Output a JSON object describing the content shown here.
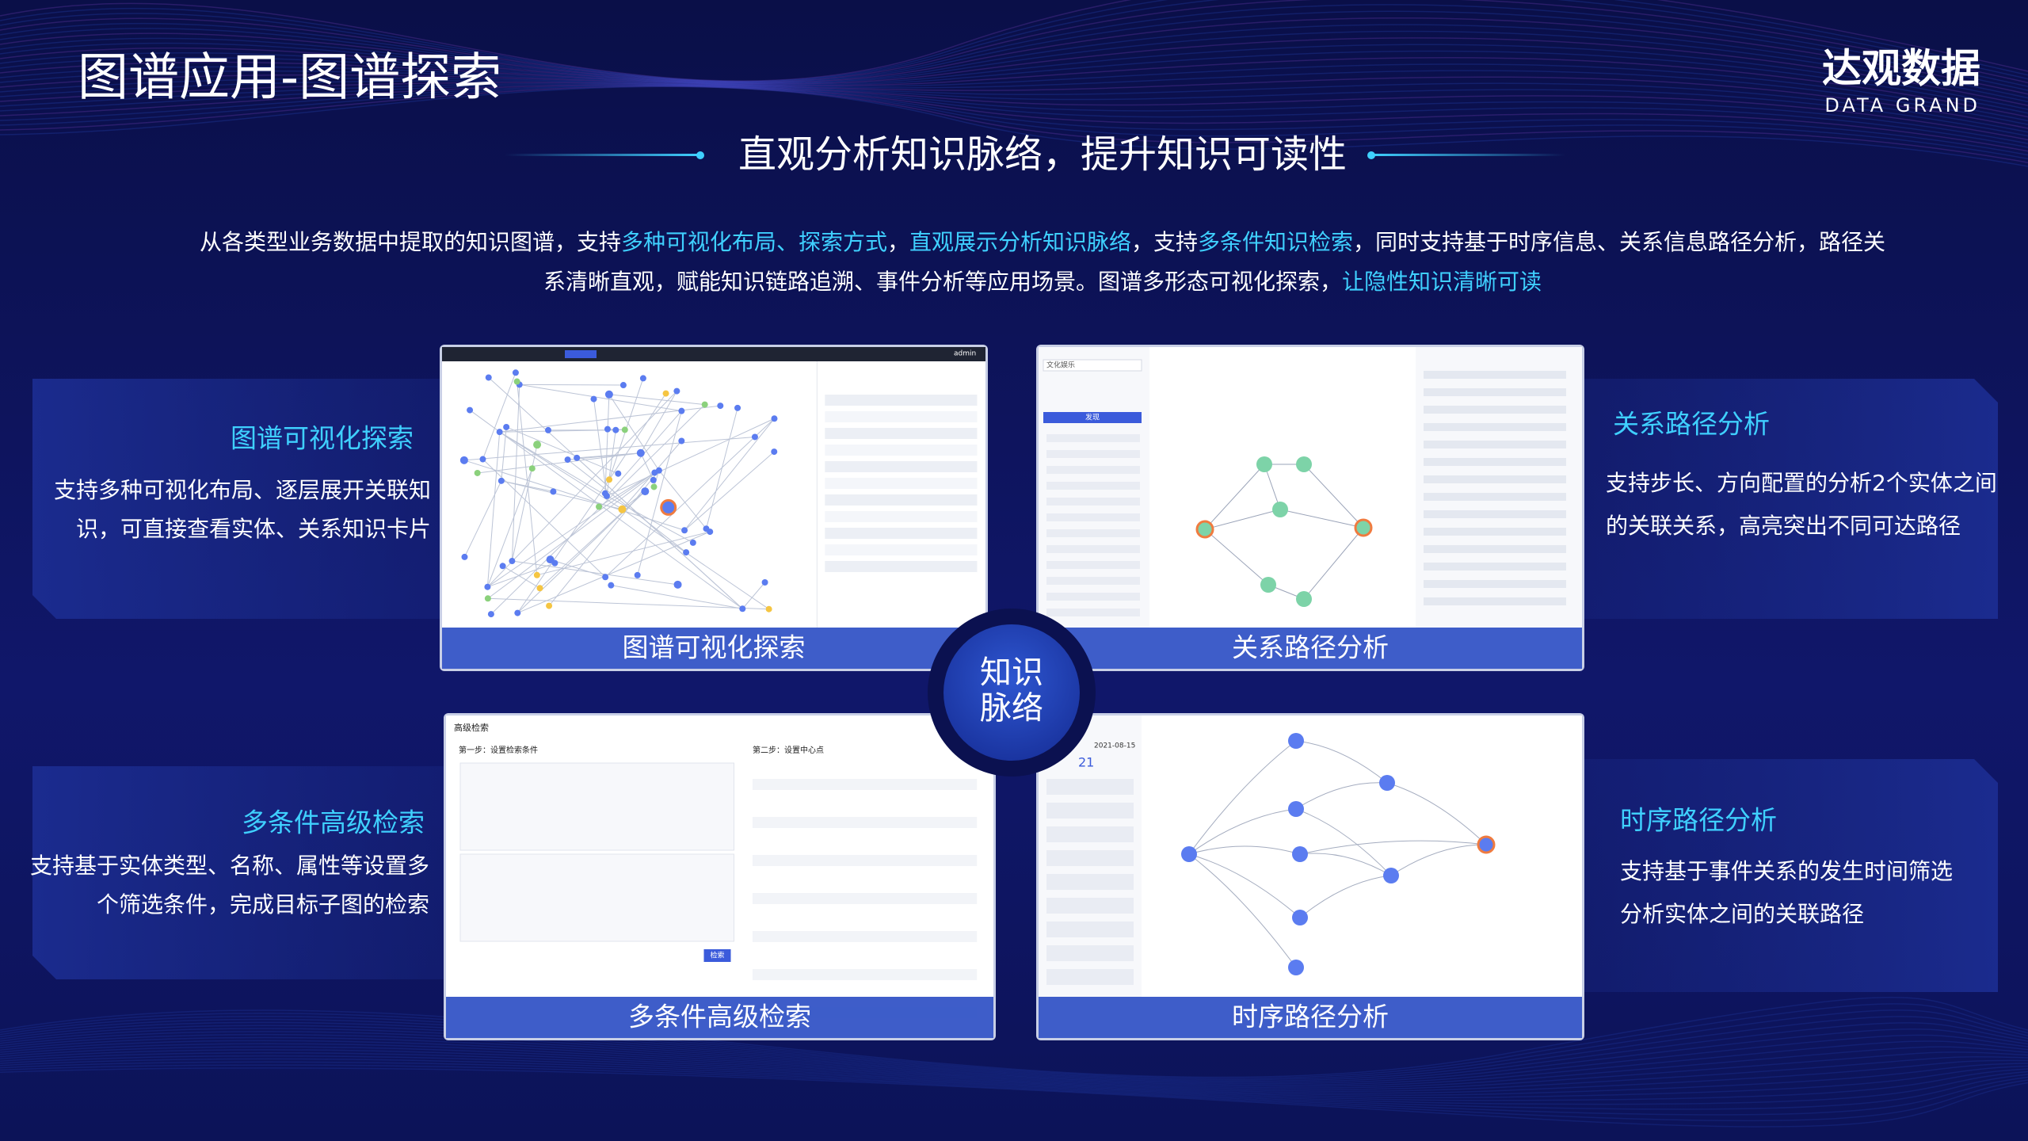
{
  "header": {
    "title": "图谱应用-图谱探索",
    "logo": {
      "name": "达观数据",
      "tagline": "DATA GRAND"
    }
  },
  "subtitle": "直观分析知识脉络，提升知识可读性",
  "intro": {
    "lines": [
      [
        {
          "text": "从各类型业务数据中提取的知识图谱，支持",
          "highlight": false
        },
        {
          "text": "多种可视化布局、探索方式",
          "highlight": true
        },
        {
          "text": "，",
          "highlight": false
        },
        {
          "text": "直观展示分析知识脉络",
          "highlight": true
        },
        {
          "text": "，支持",
          "highlight": false
        },
        {
          "text": "多条件知识检索",
          "highlight": true
        },
        {
          "text": "，同时支持基于时序信息、关系信息路径分析，路径关",
          "highlight": false
        }
      ],
      [
        {
          "text": "系清晰直观，赋能知识链路追溯、事件分析等应用场景。图谱多形态可视化探索，",
          "highlight": false
        },
        {
          "text": "让隐性知识清晰可读",
          "highlight": true
        }
      ]
    ]
  },
  "center_badge": {
    "lines": [
      "知识",
      "脉络"
    ]
  },
  "features": [
    {
      "heading": "图谱可视化探索",
      "description": [
        "支持多种可视化布局、逐层展开关联知",
        "识，可直接查看实体、关系知识卡片"
      ],
      "screen_caption": "图谱可视化探索",
      "screen_texts": [
        "admin"
      ]
    },
    {
      "heading": "关系路径分析",
      "description": [
        "支持步长、方向配置的分析2个实体之间",
        "的关联关系，高亮突出不同可达路径"
      ],
      "screen_caption": "关系路径分析",
      "screen_texts": [
        "文化娱乐",
        "发现"
      ]
    },
    {
      "heading": "多条件高级检索",
      "description": [
        "支持基于实体类型、名称、属性等设置多",
        "个筛选条件，完成目标子图的检索"
      ],
      "screen_caption": "多条件高级检索",
      "screen_texts": [
        "高级检索",
        "第一步：设置检索条件",
        "第二步：设置中心点",
        "检索"
      ]
    },
    {
      "heading": "时序路径分析",
      "description": [
        "支持基于事件关系的发生时间筛选",
        "分析实体之间的关联路径"
      ],
      "screen_caption": "时序路径分析",
      "screen_texts": [
        "2021-08-15",
        "21"
      ]
    }
  ]
}
